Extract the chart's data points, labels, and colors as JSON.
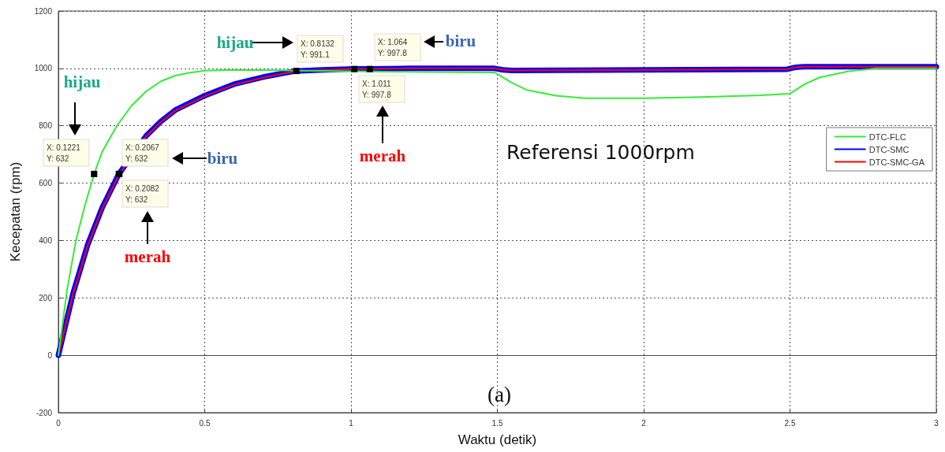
{
  "chart_data": {
    "type": "line",
    "xlabel": "Waktu (detik)",
    "ylabel": "Kecepatan (rpm)",
    "xlim": [
      0,
      3
    ],
    "xticks": [
      0,
      0.5,
      1,
      1.5,
      2,
      2.5,
      3
    ],
    "ylim": [
      -200,
      1200
    ],
    "yticks": [
      -200,
      0,
      200,
      400,
      600,
      800,
      1000,
      1200
    ],
    "grid": true,
    "legend": "right",
    "marker": "none",
    "line_style": "solid",
    "series": [
      {
        "name": "DTC-SMC",
        "color": "#0000ff",
        "x": [
          0,
          0.05,
          0.1,
          0.15,
          0.2067,
          0.3,
          0.35,
          0.4,
          0.5,
          0.6,
          0.7,
          0.81,
          0.9,
          1.01,
          1.06,
          1.2,
          1.49,
          1.52,
          1.55,
          2.0,
          2.49,
          2.52,
          2.55,
          3.0
        ],
        "values": [
          0,
          215,
          385,
          515,
          632,
          765,
          815,
          855,
          905,
          945,
          970,
          991,
          995,
          998,
          998,
          1000,
          1000,
          995,
          993,
          995,
          997,
          1004,
          1006,
          1006
        ]
      },
      {
        "name": "DTC-SMC-GA",
        "color": "#ff0000",
        "x": [
          0,
          0.05,
          0.1,
          0.15,
          0.2082,
          0.3,
          0.35,
          0.4,
          0.5,
          0.6,
          0.7,
          0.81,
          0.9,
          1.01,
          1.06,
          1.2,
          1.49,
          1.52,
          1.55,
          2.0,
          2.49,
          2.52,
          2.55,
          3.0
        ],
        "values": [
          0,
          213,
          382,
          512,
          632,
          763,
          813,
          853,
          903,
          943,
          968,
          990,
          994,
          998,
          998,
          1000,
          1000,
          995,
          993,
          995,
          997,
          1004,
          1006,
          1006
        ]
      },
      {
        "name": "DTC-FLC",
        "color": "#33ee33",
        "x": [
          0,
          0.03,
          0.06,
          0.09,
          0.1221,
          0.15,
          0.2,
          0.25,
          0.3,
          0.35,
          0.4,
          0.45,
          0.5,
          0.6,
          0.8,
          1.0,
          1.2,
          1.49,
          1.55,
          1.6,
          1.7,
          1.8,
          2.0,
          2.2,
          2.4,
          2.5,
          2.55,
          2.6,
          2.7,
          2.8,
          3.0
        ],
        "values": [
          0,
          230,
          400,
          520,
          632,
          710,
          800,
          870,
          920,
          955,
          975,
          985,
          992,
          995,
          993,
          990,
          988,
          986,
          950,
          925,
          905,
          896,
          896,
          900,
          906,
          912,
          945,
          968,
          990,
          1000,
          1000
        ]
      }
    ],
    "annotations": [
      {
        "text": "X: 0.1221\nY: 632",
        "x": 0.1221,
        "y": 632
      },
      {
        "text": "X: 0.2067\nY: 632",
        "x": 0.2067,
        "y": 632
      },
      {
        "text": "X: 0.2082\nY: 632",
        "x": 0.2082,
        "y": 632
      },
      {
        "text": "X: 0.8132\nY: 991.1",
        "x": 0.8132,
        "y": 991.1
      },
      {
        "text": "X: 1.064\nY: 997.8",
        "x": 1.064,
        "y": 997.8
      },
      {
        "text": "X: 1.011\nY: 997.8",
        "x": 1.011,
        "y": 997.8
      },
      "hijau",
      "biru",
      "merah",
      "hijau",
      "biru",
      "merah",
      "Referensi 1000rpm",
      "(a)"
    ]
  }
}
